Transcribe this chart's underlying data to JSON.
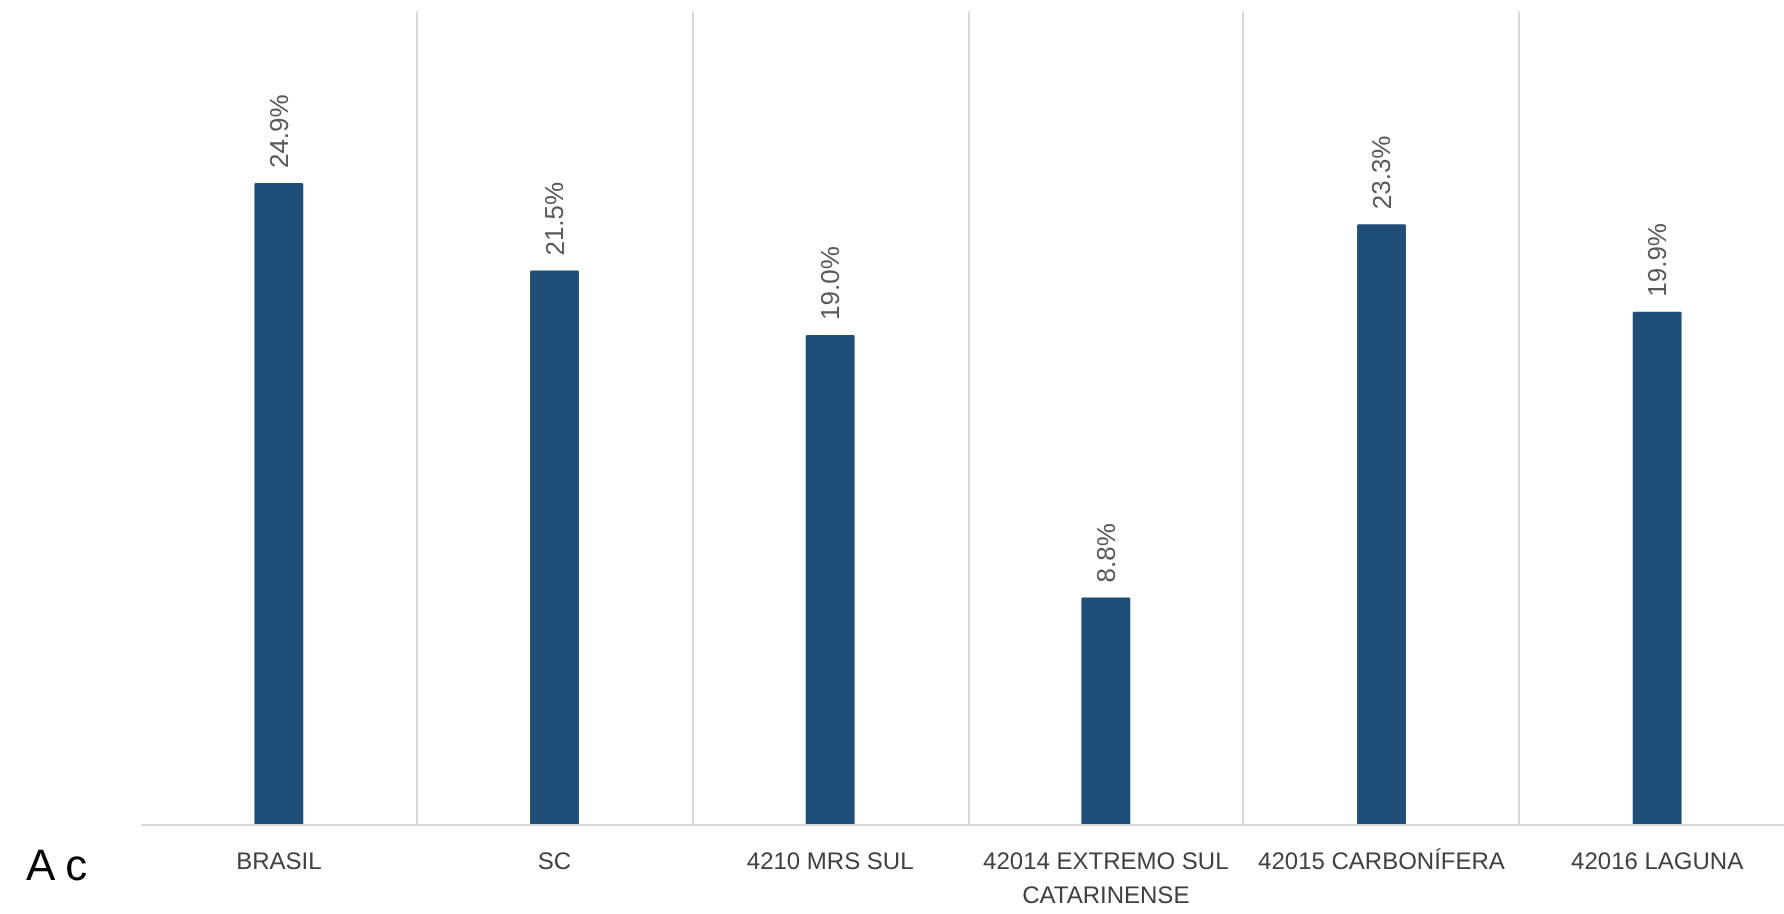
{
  "chart_data": {
    "type": "bar",
    "categories": [
      "BRASIL",
      "SC",
      "4210 MRS SUL",
      "42014 EXTREMO SUL\nCATARINENSE",
      "42015 CARBONÍFERA",
      "42016 LAGUNA"
    ],
    "series": [
      {
        "color": "#1f4e79",
        "values": [
          24.9,
          21.5,
          19.0,
          8.8,
          23.3,
          19.9
        ],
        "value_labels": [
          "24.9%",
          "21.5%",
          "19.0%",
          "8.8%",
          "23.3%",
          "19.9%"
        ]
      }
    ],
    "grid": "x",
    "annotations": [
      "A c"
    ]
  }
}
